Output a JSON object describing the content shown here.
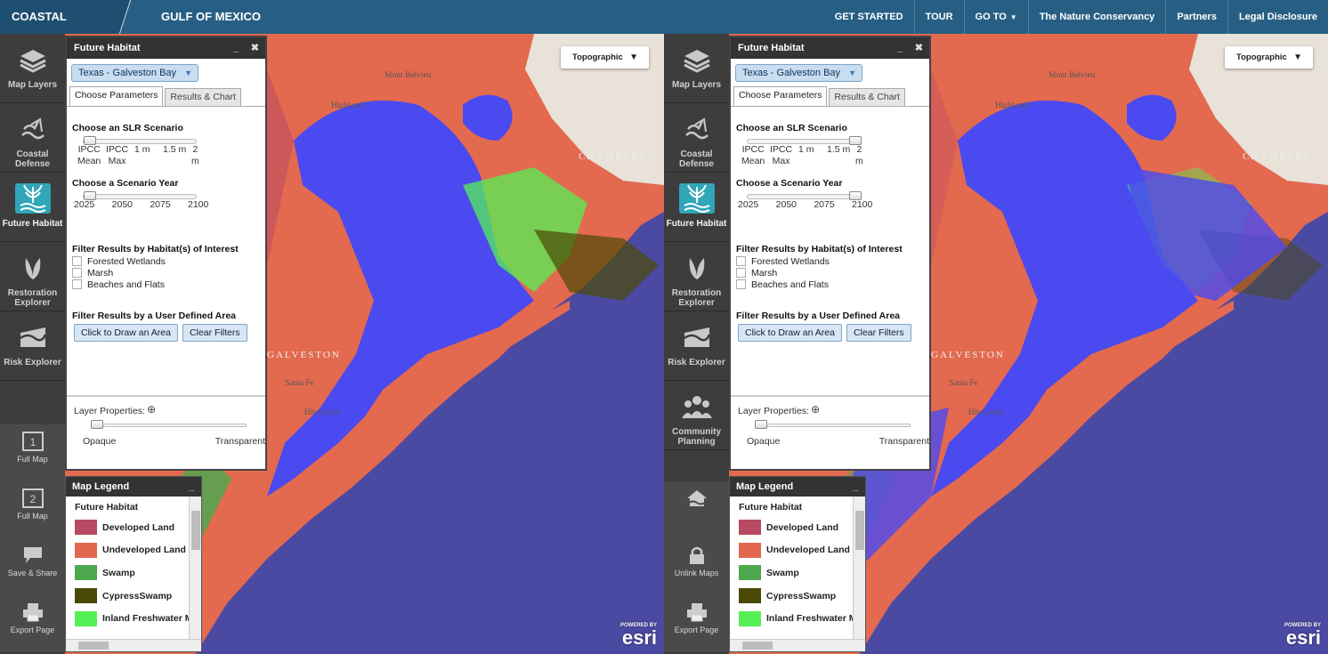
{
  "header": {
    "brand": "COASTAL RESILIENCE",
    "region": "GULF OF MEXICO",
    "nav": [
      {
        "label": "GET STARTED",
        "caret": ""
      },
      {
        "label": "TOUR",
        "caret": ""
      },
      {
        "label": "GO TO",
        "caret": "▼"
      },
      {
        "label": "The Nature Conservancy",
        "caret": ""
      },
      {
        "label": "Partners",
        "caret": ""
      },
      {
        "label": "Legal Disclosure",
        "caret": ""
      }
    ]
  },
  "left": {
    "sidebar": {
      "items": [
        {
          "label": "Map Layers",
          "icon": "layers-icon"
        },
        {
          "label": "Coastal Defense",
          "icon": "waves-icon"
        },
        {
          "label": "Future Habitat",
          "icon": "future-habitat-icon"
        },
        {
          "label": "Restoration Explorer",
          "icon": "leaf-icon"
        },
        {
          "label": "Risk Explorer",
          "icon": "risk-icon"
        }
      ],
      "lower": [
        {
          "label": "Full Map",
          "icon": "map-1-icon",
          "glyph": "1"
        },
        {
          "label": "Full Map",
          "icon": "map-2-icon",
          "glyph": "2"
        },
        {
          "label": "Save & Share",
          "icon": "share-icon",
          "glyph": ""
        },
        {
          "label": "Export Page",
          "icon": "print-icon",
          "glyph": ""
        }
      ]
    },
    "panel": {
      "title": "Future Habitat",
      "minimize": "_",
      "close": "✖",
      "location": "Texas - Galveston Bay",
      "tabs": [
        "Choose Parameters",
        "Results & Chart"
      ],
      "slr_title": "Choose an SLR Scenario",
      "slr_ticks": [
        "IPCC Mean",
        "IPCC Max",
        "1 m",
        "1.5 m",
        "2 m"
      ],
      "slr_selected": 0,
      "year_title": "Choose a Scenario Year",
      "year_ticks": [
        "2025",
        "2050",
        "2075",
        "2100"
      ],
      "year_selected": 0,
      "habitat_title": "Filter Results by Habitat(s) of Interest",
      "habitats": [
        "Forested Wetlands",
        "Marsh",
        "Beaches and Flats"
      ],
      "area_title": "Filter Results by a User Defined Area",
      "draw_button": "Click to Draw an Area",
      "clear_button": "Clear Filters",
      "layer_props": "Layer Properties:",
      "opaque": "Opaque",
      "transparent": "Transparent"
    },
    "legend": {
      "title": "Map Legend",
      "minimize": "_",
      "group": "Future Habitat",
      "items": [
        {
          "label": "Developed Land",
          "color": "#b94a63"
        },
        {
          "label": "Undeveloped Land",
          "color": "#e2664e"
        },
        {
          "label": "Swamp",
          "color": "#4ea84e"
        },
        {
          "label": "CypressSwamp",
          "color": "#4a4a06"
        },
        {
          "label": "Inland Freshwater M",
          "color": "#55f055"
        }
      ]
    },
    "basemap": {
      "label": "Topographic",
      "caret": "▼"
    },
    "places": [
      "Mont Belvieu",
      "Highlands",
      "CHAMBERS",
      "GALVESTON",
      "Santa Fe",
      "Hitchcock"
    ],
    "esri": {
      "powered": "POWERED BY",
      "logo": "esri"
    }
  },
  "right": {
    "sidebar": {
      "items": [
        {
          "label": "Map Layers",
          "icon": "layers-icon"
        },
        {
          "label": "Coastal Defense",
          "icon": "waves-icon"
        },
        {
          "label": "Future Habitat",
          "icon": "future-habitat-icon"
        },
        {
          "label": "Restoration Explorer",
          "icon": "leaf-icon"
        },
        {
          "label": "Risk Explorer",
          "icon": "risk-icon"
        },
        {
          "label": "Community Planning",
          "icon": "community-icon"
        }
      ],
      "lower": [
        {
          "label": "",
          "icon": "home-icon",
          "glyph": ""
        },
        {
          "label": "Unlink Maps",
          "icon": "lock-icon",
          "glyph": ""
        },
        {
          "label": "Export Page",
          "icon": "print-icon",
          "glyph": ""
        }
      ]
    },
    "panel": {
      "title": "Future Habitat",
      "minimize": "_",
      "close": "✖",
      "location": "Texas - Galveston Bay",
      "tabs": [
        "Choose Parameters",
        "Results & Chart"
      ],
      "slr_title": "Choose an SLR Scenario",
      "slr_ticks": [
        "IPCC Mean",
        "IPCC Max",
        "1 m",
        "1.5 m",
        "2 m"
      ],
      "slr_selected": 4,
      "year_title": "Choose a Scenario Year",
      "year_ticks": [
        "2025",
        "2050",
        "2075",
        "2100"
      ],
      "year_selected": 3,
      "habitat_title": "Filter Results by Habitat(s) of Interest",
      "habitats": [
        "Forested Wetlands",
        "Marsh",
        "Beaches and Flats"
      ],
      "area_title": "Filter Results by a User Defined Area",
      "draw_button": "Click to Draw an Area",
      "clear_button": "Clear Filters",
      "layer_props": "Layer Properties:",
      "opaque": "Opaque",
      "transparent": "Transparent"
    },
    "legend": {
      "title": "Map Legend",
      "minimize": "_",
      "group": "Future Habitat",
      "items": [
        {
          "label": "Developed Land",
          "color": "#b94a63"
        },
        {
          "label": "Undeveloped Land",
          "color": "#e2664e"
        },
        {
          "label": "Swamp",
          "color": "#4ea84e"
        },
        {
          "label": "CypressSwamp",
          "color": "#4a4a06"
        },
        {
          "label": "Inland Freshwater M",
          "color": "#55f055"
        }
      ]
    },
    "basemap": {
      "label": "Topographic",
      "caret": "▼"
    },
    "places": [
      "Mont Belvieu",
      "Highlands",
      "CHAMBERS",
      "GALVESTON",
      "Santa Fe",
      "Hitchcock"
    ],
    "esri": {
      "powered": "POWERED BY",
      "logo": "esri"
    }
  },
  "colors": {
    "water": "#4a4af0",
    "gulf": "#4b4aa3",
    "land_base": "#e8e2d8"
  }
}
